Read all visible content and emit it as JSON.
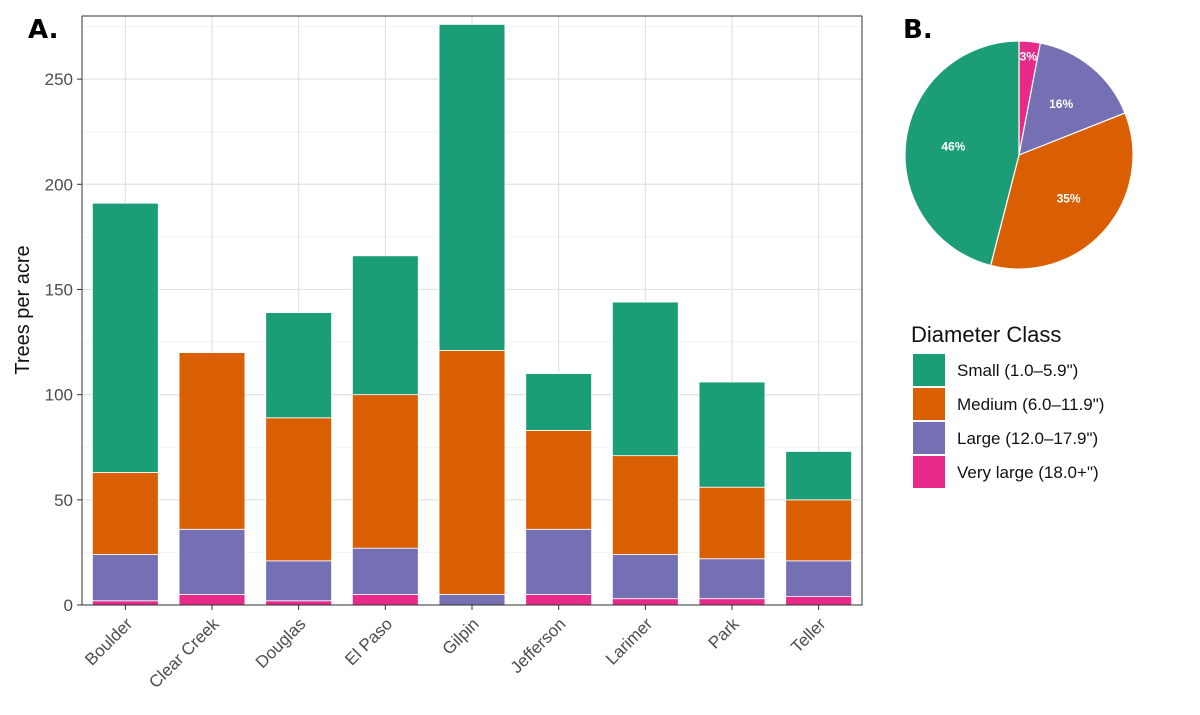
{
  "chart_data": [
    {
      "panel": "A.",
      "type": "bar",
      "stacked": true,
      "ylabel": "Trees per acre",
      "ylim": [
        0,
        280
      ],
      "yticks": [
        0,
        50,
        100,
        150,
        200,
        250
      ],
      "grid": true,
      "categories": [
        "Boulder",
        "Clear Creek",
        "Douglas",
        "El Paso",
        "Gilpin",
        "Jefferson",
        "Larimer",
        "Park",
        "Teller"
      ],
      "series": [
        {
          "name": "Very large (18.0+\")",
          "color": "#e7298a",
          "values": [
            2,
            5,
            2,
            5,
            0,
            5,
            3,
            3,
            4
          ]
        },
        {
          "name": "Large (12.0–17.9\")",
          "color": "#7570b3",
          "values": [
            22,
            31,
            19,
            22,
            5,
            31,
            21,
            19,
            17
          ]
        },
        {
          "name": "Medium (6.0–11.9\")",
          "color": "#d95f02",
          "values": [
            39,
            84,
            68,
            73,
            116,
            47,
            47,
            34,
            29
          ]
        },
        {
          "name": "Small (1.0–5.9\")",
          "color": "#1b9e77",
          "values": [
            128,
            0,
            50,
            66,
            155,
            27,
            73,
            50,
            23
          ]
        }
      ]
    },
    {
      "panel": "B.",
      "type": "pie",
      "slices": [
        {
          "name": "Very large (18.0+\")",
          "value": 3,
          "label": "3%",
          "color": "#e7298a"
        },
        {
          "name": "Large (12.0–17.9\")",
          "value": 16,
          "label": "16%",
          "color": "#7570b3"
        },
        {
          "name": "Medium (6.0–11.9\")",
          "value": 35,
          "label": "35%",
          "color": "#d95f02"
        },
        {
          "name": "Small (1.0–5.9\")",
          "value": 46,
          "label": "46%",
          "color": "#1b9e77"
        }
      ]
    }
  ],
  "legend": {
    "title": "Diameter Class",
    "items": [
      {
        "label": "Small (1.0–5.9\")",
        "color": "#1b9e77"
      },
      {
        "label": "Medium (6.0–11.9\")",
        "color": "#d95f02"
      },
      {
        "label": "Large (12.0–17.9\")",
        "color": "#7570b3"
      },
      {
        "label": "Very large (18.0+\")",
        "color": "#e7298a"
      }
    ]
  }
}
